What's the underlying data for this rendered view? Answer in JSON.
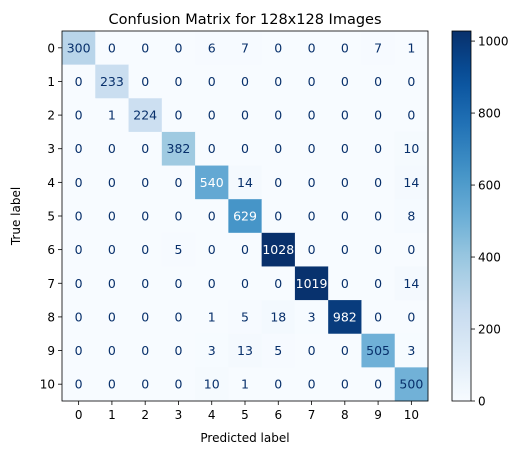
{
  "chart_data": {
    "type": "heatmap",
    "title": "Confusion Matrix for 128x128 Images",
    "xlabel": "Predicted label",
    "ylabel": "True label",
    "x_tick_labels": [
      "0",
      "1",
      "2",
      "3",
      "4",
      "5",
      "6",
      "7",
      "8",
      "9",
      "10"
    ],
    "y_tick_labels": [
      "0",
      "1",
      "2",
      "3",
      "4",
      "5",
      "6",
      "7",
      "8",
      "9",
      "10"
    ],
    "matrix": [
      [
        300,
        0,
        0,
        0,
        6,
        7,
        0,
        0,
        0,
        7,
        1
      ],
      [
        0,
        233,
        0,
        0,
        0,
        0,
        0,
        0,
        0,
        0,
        0
      ],
      [
        0,
        1,
        224,
        0,
        0,
        0,
        0,
        0,
        0,
        0,
        0
      ],
      [
        0,
        0,
        0,
        382,
        0,
        0,
        0,
        0,
        0,
        0,
        10
      ],
      [
        0,
        0,
        0,
        0,
        540,
        14,
        0,
        0,
        0,
        0,
        14
      ],
      [
        0,
        0,
        0,
        0,
        0,
        629,
        0,
        0,
        0,
        0,
        8
      ],
      [
        0,
        0,
        0,
        5,
        0,
        0,
        1028,
        0,
        0,
        0,
        0
      ],
      [
        0,
        0,
        0,
        0,
        0,
        0,
        0,
        1019,
        0,
        0,
        14
      ],
      [
        0,
        0,
        0,
        0,
        1,
        5,
        18,
        3,
        982,
        0,
        0
      ],
      [
        0,
        0,
        0,
        0,
        3,
        13,
        5,
        0,
        0,
        505,
        3
      ],
      [
        0,
        0,
        0,
        0,
        10,
        1,
        0,
        0,
        0,
        0,
        500
      ]
    ],
    "colormap": "Blues",
    "colorbar": {
      "range": [
        0,
        1028
      ],
      "ticks": [
        0,
        200,
        400,
        600,
        800,
        1000
      ],
      "tick_labels": [
        "0",
        "200",
        "400",
        "600",
        "800",
        "1000"
      ]
    },
    "colors": {
      "low": "#f7fbff",
      "high": "#08306b",
      "text_dark": "#08306b",
      "text_light": "#ffffff"
    },
    "grid": false,
    "legend": "none"
  }
}
